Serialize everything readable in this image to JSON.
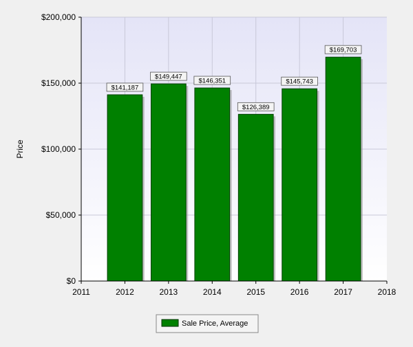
{
  "chart_data": {
    "type": "bar",
    "title": "",
    "xlabel": "",
    "ylabel": "Price",
    "categories": [
      "2012",
      "2013",
      "2014",
      "2015",
      "2016",
      "2017"
    ],
    "x_ticks": [
      "2011",
      "2012",
      "2013",
      "2014",
      "2015",
      "2016",
      "2017",
      "2018"
    ],
    "xlim": [
      2011,
      2018
    ],
    "series": [
      {
        "name": "Sale Price, Average",
        "values": [
          141187,
          149447,
          146351,
          126389,
          145743,
          169703
        ],
        "data_labels": [
          "$141,187",
          "$149,447",
          "$146,351",
          "$126,389",
          "$145,743",
          "$169,703"
        ],
        "color": "#008000"
      }
    ],
    "ylim": [
      0,
      200000
    ],
    "y_ticks": [
      0,
      50000,
      100000,
      150000,
      200000
    ],
    "y_tick_labels": [
      "$0",
      "$50,000",
      "$100,000",
      "$150,000",
      "$200,000"
    ],
    "grid": true,
    "legend_position": "bottom-center",
    "plot_background": "#e8e8f8"
  }
}
